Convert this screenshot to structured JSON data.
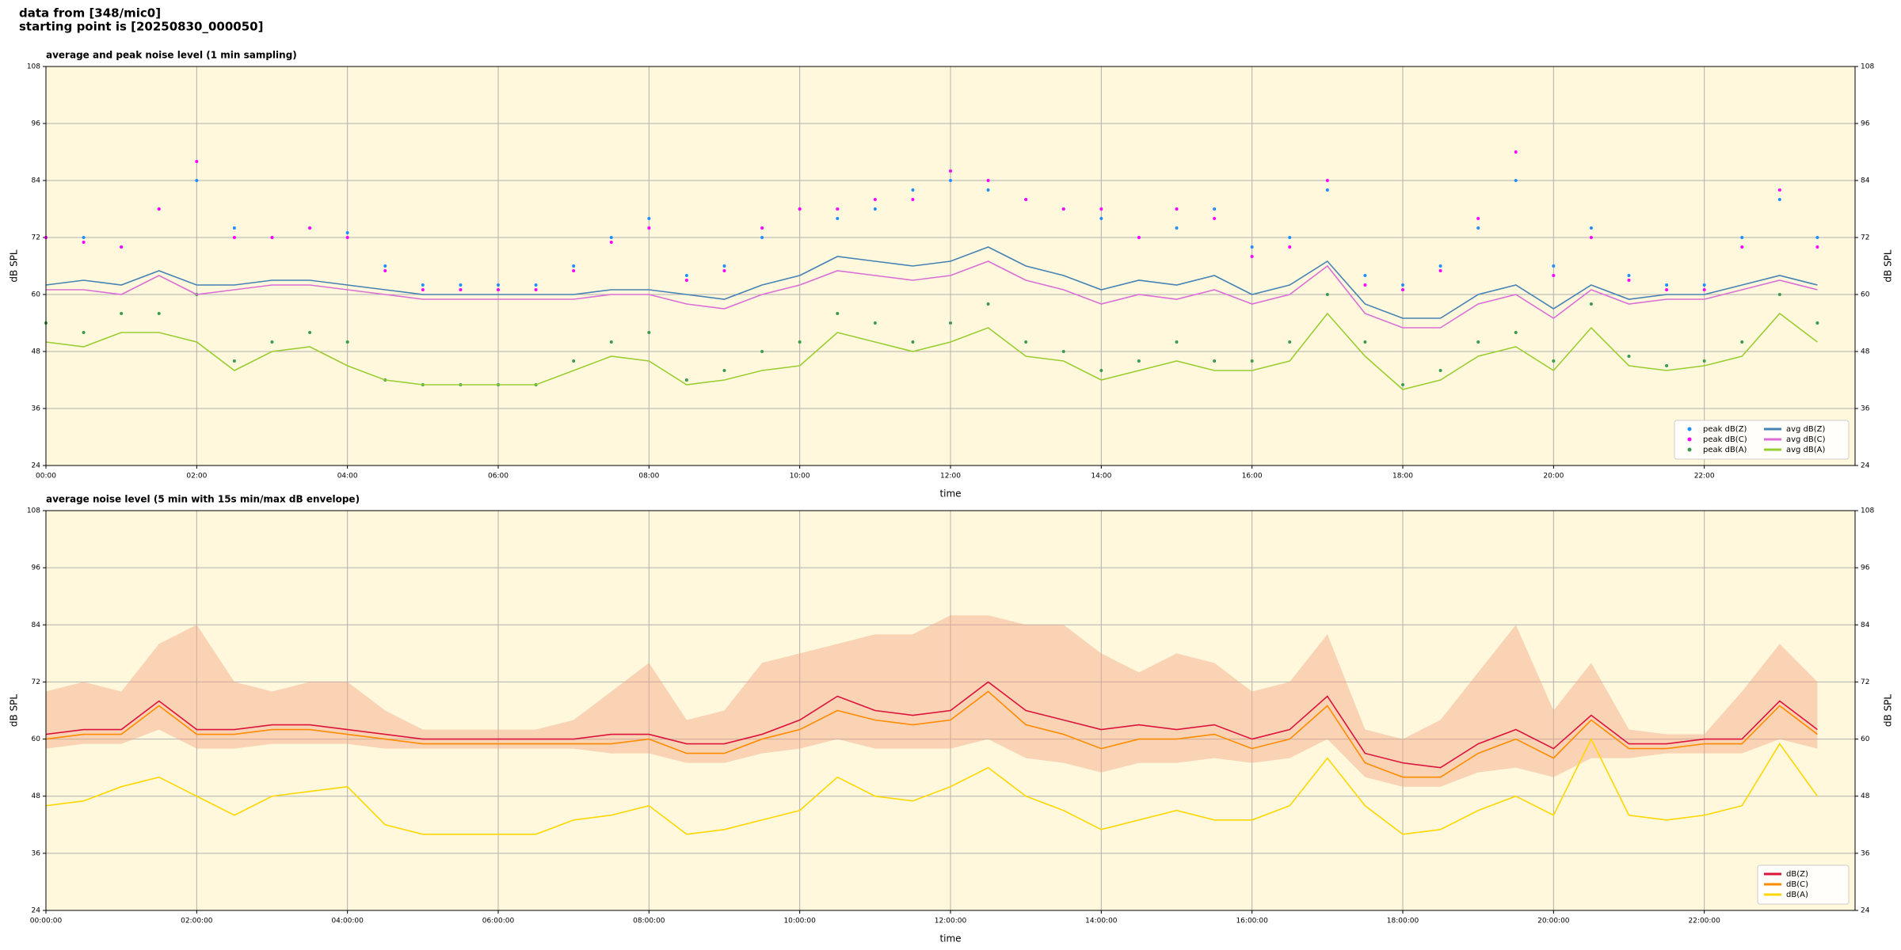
{
  "header": {
    "line1": "data from [348/mic0]",
    "line2": "starting point is [20250830_000050]"
  },
  "chart_data": [
    {
      "type": "line",
      "title": "average and peak noise level (1 min sampling)",
      "xlabel": "time",
      "ylabel": "dB SPL",
      "background": "#fff8dc",
      "grid": true,
      "legend": "lower right",
      "legend_ncol": 2,
      "xlim": [
        0,
        24
      ],
      "xticks": [
        {
          "value": 0,
          "label": "00:00"
        },
        {
          "value": 2,
          "label": "02:00"
        },
        {
          "value": 4,
          "label": "04:00"
        },
        {
          "value": 6,
          "label": "06:00"
        },
        {
          "value": 8,
          "label": "08:00"
        },
        {
          "value": 10,
          "label": "10:00"
        },
        {
          "value": 12,
          "label": "12:00"
        },
        {
          "value": 14,
          "label": "14:00"
        },
        {
          "value": 16,
          "label": "16:00"
        },
        {
          "value": 18,
          "label": "18:00"
        },
        {
          "value": 20,
          "label": "20:00"
        },
        {
          "value": 22,
          "label": "22:00"
        }
      ],
      "ylim": [
        24,
        108
      ],
      "yticks": [
        24,
        36,
        48,
        60,
        72,
        84,
        96,
        108
      ],
      "x": [
        0,
        0.5,
        1,
        1.5,
        2,
        2.5,
        3,
        3.5,
        4,
        4.5,
        5,
        5.5,
        6,
        6.5,
        7,
        7.5,
        8,
        8.5,
        9,
        9.5,
        10,
        10.5,
        11,
        11.5,
        12,
        12.5,
        13,
        13.5,
        14,
        14.5,
        15,
        15.5,
        16,
        16.5,
        17,
        17.5,
        18,
        18.5,
        19,
        19.5,
        20,
        20.5,
        21,
        21.5,
        22,
        22.5,
        23,
        23.5
      ],
      "series": [
        {
          "name": "peak dB(Z)",
          "color": "#1f8fff",
          "style": "dots",
          "values": [
            72,
            72,
            70,
            78,
            84,
            74,
            72,
            74,
            73,
            66,
            62,
            62,
            62,
            62,
            66,
            72,
            76,
            64,
            66,
            72,
            78,
            76,
            78,
            82,
            84,
            82,
            80,
            78,
            76,
            72,
            74,
            78,
            70,
            72,
            82,
            64,
            62,
            66,
            74,
            84,
            66,
            74,
            64,
            62,
            62,
            72,
            80,
            72
          ]
        },
        {
          "name": "peak dB(C)",
          "color": "#ff00ff",
          "style": "dots",
          "values": [
            72,
            71,
            70,
            78,
            88,
            72,
            72,
            74,
            72,
            65,
            61,
            61,
            61,
            61,
            65,
            71,
            74,
            63,
            65,
            74,
            78,
            78,
            80,
            80,
            86,
            84,
            80,
            78,
            78,
            72,
            78,
            76,
            68,
            70,
            84,
            62,
            61,
            65,
            76,
            90,
            64,
            72,
            63,
            61,
            61,
            70,
            82,
            70
          ]
        },
        {
          "name": "peak dB(A)",
          "color": "#3c9a50",
          "style": "dots",
          "values": [
            54,
            52,
            56,
            56,
            60,
            46,
            50,
            52,
            50,
            42,
            41,
            41,
            41,
            41,
            46,
            50,
            52,
            42,
            44,
            48,
            50,
            56,
            54,
            50,
            54,
            58,
            50,
            48,
            44,
            46,
            50,
            46,
            46,
            50,
            60,
            50,
            41,
            44,
            50,
            52,
            46,
            58,
            47,
            45,
            46,
            50,
            60,
            54
          ]
        },
        {
          "name": "avg dB(Z)",
          "color": "#4682b4",
          "style": "line",
          "values": [
            62,
            63,
            62,
            65,
            62,
            62,
            63,
            63,
            62,
            61,
            60,
            60,
            60,
            60,
            60,
            61,
            61,
            60,
            59,
            62,
            64,
            68,
            67,
            66,
            67,
            70,
            66,
            64,
            61,
            63,
            62,
            64,
            60,
            62,
            67,
            58,
            55,
            55,
            60,
            62,
            57,
            62,
            59,
            60,
            60,
            62,
            64,
            62
          ]
        },
        {
          "name": "avg dB(C)",
          "color": "#da70d6",
          "style": "line",
          "values": [
            61,
            61,
            60,
            64,
            60,
            61,
            62,
            62,
            61,
            60,
            59,
            59,
            59,
            59,
            59,
            60,
            60,
            58,
            57,
            60,
            62,
            65,
            64,
            63,
            64,
            67,
            63,
            61,
            58,
            60,
            59,
            61,
            58,
            60,
            66,
            56,
            53,
            53,
            58,
            60,
            55,
            61,
            58,
            59,
            59,
            61,
            63,
            61
          ]
        },
        {
          "name": "avg dB(A)",
          "color": "#9acd32",
          "style": "line",
          "values": [
            50,
            49,
            52,
            52,
            50,
            44,
            48,
            49,
            45,
            42,
            41,
            41,
            41,
            41,
            44,
            47,
            46,
            41,
            42,
            44,
            45,
            52,
            50,
            48,
            50,
            53,
            47,
            46,
            42,
            44,
            46,
            44,
            44,
            46,
            56,
            47,
            40,
            42,
            47,
            49,
            44,
            53,
            45,
            44,
            45,
            47,
            56,
            50
          ]
        }
      ]
    },
    {
      "type": "line",
      "title": "average noise level (5 min with 15s min/max dB envelope)",
      "xlabel": "time",
      "ylabel": "dB SPL",
      "background": "#fff8dc",
      "grid": true,
      "legend": "lower right",
      "legend_ncol": 1,
      "xlim": [
        0,
        24
      ],
      "xticks": [
        {
          "value": 0,
          "label": "00:00:00"
        },
        {
          "value": 2,
          "label": "02:00:00"
        },
        {
          "value": 4,
          "label": "04:00:00"
        },
        {
          "value": 6,
          "label": "06:00:00"
        },
        {
          "value": 8,
          "label": "08:00:00"
        },
        {
          "value": 10,
          "label": "10:00:00"
        },
        {
          "value": 12,
          "label": "12:00:00"
        },
        {
          "value": 14,
          "label": "14:00:00"
        },
        {
          "value": 16,
          "label": "16:00:00"
        },
        {
          "value": 18,
          "label": "18:00:00"
        },
        {
          "value": 20,
          "label": "20:00:00"
        },
        {
          "value": 22,
          "label": "22:00:00"
        }
      ],
      "ylim": [
        24,
        108
      ],
      "yticks": [
        24,
        36,
        48,
        60,
        72,
        84,
        96,
        108
      ],
      "x": [
        0,
        0.5,
        1,
        1.5,
        2,
        2.5,
        3,
        3.5,
        4,
        4.5,
        5,
        5.5,
        6,
        6.5,
        7,
        7.5,
        8,
        8.5,
        9,
        9.5,
        10,
        10.5,
        11,
        11.5,
        12,
        12.5,
        13,
        13.5,
        14,
        14.5,
        15,
        15.5,
        16,
        16.5,
        17,
        17.5,
        18,
        18.5,
        19,
        19.5,
        20,
        20.5,
        21,
        21.5,
        22,
        22.5,
        23,
        23.5
      ],
      "envelope": {
        "color": "#f4a582",
        "lower": [
          58,
          59,
          59,
          62,
          58,
          58,
          59,
          59,
          59,
          58,
          58,
          58,
          58,
          58,
          58,
          57,
          57,
          55,
          55,
          57,
          58,
          60,
          58,
          58,
          58,
          60,
          56,
          55,
          53,
          55,
          55,
          56,
          55,
          56,
          60,
          52,
          50,
          50,
          53,
          54,
          52,
          56,
          56,
          57,
          57,
          57,
          60,
          58
        ],
        "upper": [
          70,
          72,
          70,
          80,
          84,
          72,
          70,
          72,
          72,
          66,
          62,
          62,
          62,
          62,
          64,
          70,
          76,
          64,
          66,
          76,
          78,
          80,
          82,
          82,
          86,
          86,
          84,
          84,
          78,
          74,
          78,
          76,
          70,
          72,
          82,
          62,
          60,
          64,
          74,
          84,
          66,
          76,
          62,
          61,
          61,
          70,
          80,
          72
        ]
      },
      "series": [
        {
          "name": "dB(Z)",
          "color": "#dc143c",
          "style": "line",
          "values": [
            61,
            62,
            62,
            68,
            62,
            62,
            63,
            63,
            62,
            61,
            60,
            60,
            60,
            60,
            60,
            61,
            61,
            59,
            59,
            61,
            64,
            69,
            66,
            65,
            66,
            72,
            66,
            64,
            62,
            63,
            62,
            63,
            60,
            62,
            69,
            57,
            55,
            54,
            59,
            62,
            58,
            65,
            59,
            59,
            60,
            60,
            68,
            62
          ]
        },
        {
          "name": "dB(C)",
          "color": "#ff8c00",
          "style": "line",
          "values": [
            60,
            61,
            61,
            67,
            61,
            61,
            62,
            62,
            61,
            60,
            59,
            59,
            59,
            59,
            59,
            59,
            60,
            57,
            57,
            60,
            62,
            66,
            64,
            63,
            64,
            70,
            63,
            61,
            58,
            60,
            60,
            61,
            58,
            60,
            67,
            55,
            52,
            52,
            57,
            60,
            56,
            64,
            58,
            58,
            59,
            59,
            67,
            61
          ]
        },
        {
          "name": "dB(A)",
          "color": "#ffd700",
          "style": "line",
          "values": [
            46,
            47,
            50,
            52,
            48,
            44,
            48,
            49,
            50,
            42,
            40,
            40,
            40,
            40,
            43,
            44,
            46,
            40,
            41,
            43,
            45,
            52,
            48,
            47,
            50,
            54,
            48,
            45,
            41,
            43,
            45,
            43,
            43,
            46,
            56,
            46,
            40,
            41,
            45,
            48,
            44,
            60,
            44,
            43,
            44,
            46,
            59,
            48
          ]
        }
      ]
    }
  ]
}
